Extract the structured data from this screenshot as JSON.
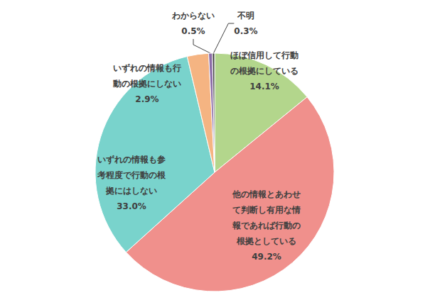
{
  "chart_data": {
    "type": "pie",
    "categories": [
      "ほぼ信用して行動の根拠にしている",
      "他の情報とあわせて判断し有用な情報であれば行動の根拠としている",
      "いずれの情報も参考程度で行動の根拠にはしない",
      "いずれの情報も行動の根拠にしない",
      "わからない",
      "不明"
    ],
    "values": [
      14.1,
      49.2,
      33.0,
      2.9,
      0.5,
      0.3
    ],
    "value_labels": [
      "14.1%",
      "49.2%",
      "33.0%",
      "2.9%",
      "0.5%",
      "0.3%"
    ],
    "colors": [
      "#b3d68c",
      "#f0908c",
      "#79d3cc",
      "#f5b482",
      "#8b6ba8",
      "#404040"
    ],
    "data_labels": true
  }
}
